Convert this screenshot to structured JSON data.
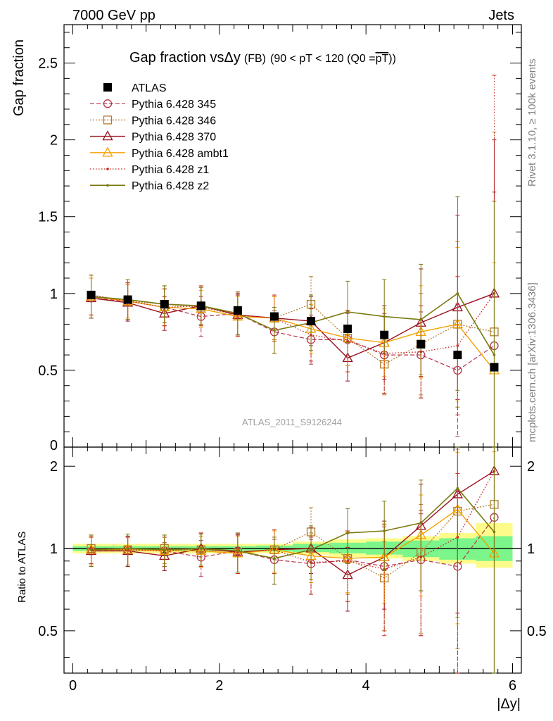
{
  "header": {
    "left": "7000 GeV pp",
    "right": "Jets"
  },
  "title": {
    "main": "Gap fraction vs",
    "delta_y": "Δy",
    "suffix": "(FB)",
    "range": "(90 < pT < 120 (Q0 =",
    "overline_part": "pT",
    "close": "))"
  },
  "side_labels": {
    "rivet": "Rivet 3.1.10, ≥ 100k events",
    "mcplots": "mcplots.cern.ch [arXiv:1306.3436]"
  },
  "watermark": "ATLAS_2011_S9126244",
  "colors": {
    "data": "#000000",
    "p345": "#b5344a",
    "p346": "#b07a2a",
    "p370": "#9a1020",
    "ambt1": "#f5a000",
    "z1": "#c8241b",
    "z2": "#7a7a10",
    "band_inner": "#7cf58a",
    "band_outer": "#fdfb8a"
  },
  "chart_data": [
    {
      "type": "scatter",
      "panel": "main",
      "ylabel": "Gap fraction",
      "xlim": [
        -0.12,
        6.12
      ],
      "ylim": [
        0,
        2.75
      ],
      "yticks": [
        0.5,
        1,
        1.5,
        2,
        2.5
      ],
      "ytick_labels": [
        "0.5",
        "1",
        "1.5",
        "2",
        "2.5"
      ],
      "x": [
        0.25,
        0.75,
        1.25,
        1.75,
        2.25,
        2.75,
        3.25,
        3.75,
        4.25,
        4.75,
        5.25,
        5.75
      ],
      "data": {
        "name": "ATLAS",
        "values": [
          0.99,
          0.96,
          0.93,
          0.92,
          0.89,
          0.85,
          0.82,
          0.77,
          0.73,
          0.67,
          0.6,
          0.52
        ]
      },
      "series": [
        {
          "key": "p345",
          "name": "Pythia 6.428 345",
          "values": [
            0.97,
            0.95,
            0.91,
            0.85,
            0.87,
            0.75,
            0.7,
            0.7,
            0.6,
            0.6,
            0.5,
            0.66
          ],
          "errors": [
            0.13,
            0.12,
            0.12,
            0.13,
            0.14,
            0.14,
            0.16,
            0.17,
            0.25,
            0.28,
            0.43,
            1.0
          ]
        },
        {
          "key": "p346",
          "name": "Pythia 6.428 346",
          "values": [
            0.99,
            0.95,
            0.93,
            0.91,
            0.86,
            0.84,
            0.93,
            0.71,
            0.54,
            0.67,
            0.8,
            0.75
          ],
          "errors": [
            0.13,
            0.12,
            0.12,
            0.13,
            0.14,
            0.14,
            0.18,
            0.18,
            0.2,
            0.33,
            0.54,
            1.3
          ]
        },
        {
          "key": "p370",
          "name": "Pythia 6.428 370",
          "values": [
            0.97,
            0.94,
            0.87,
            0.92,
            0.86,
            0.84,
            0.82,
            0.58,
            0.68,
            0.81,
            0.91,
            1.0
          ],
          "errors": [
            0.13,
            0.12,
            0.11,
            0.12,
            0.13,
            0.14,
            0.16,
            0.15,
            0.24,
            0.35,
            0.6,
            1.0
          ]
        },
        {
          "key": "ambt1",
          "name": "Pythia 6.428 ambt1",
          "values": [
            0.98,
            0.95,
            0.91,
            0.9,
            0.85,
            0.84,
            0.77,
            0.71,
            0.68,
            0.75,
            0.8,
            0.5
          ],
          "errors": [
            0.12,
            0.11,
            0.12,
            0.12,
            0.13,
            0.14,
            0.16,
            0.18,
            0.22,
            0.3,
            0.5,
            0.7
          ]
        },
        {
          "key": "z1",
          "name": "Pythia 6.428 z1",
          "values": [
            0.99,
            0.95,
            0.91,
            0.92,
            0.86,
            0.84,
            0.73,
            0.69,
            0.61,
            0.62,
            0.66,
            1.0
          ],
          "errors": [
            0.13,
            0.12,
            0.12,
            0.13,
            0.14,
            0.15,
            0.17,
            0.2,
            0.26,
            0.3,
            0.45,
            1.42
          ]
        },
        {
          "key": "z2",
          "name": "Pythia 6.428 z2",
          "values": [
            0.98,
            0.96,
            0.93,
            0.92,
            0.87,
            0.76,
            0.81,
            0.88,
            0.85,
            0.83,
            1.0,
            0.6
          ],
          "errors": [
            0.14,
            0.13,
            0.12,
            0.12,
            0.14,
            0.15,
            0.18,
            0.2,
            0.24,
            0.36,
            0.63,
            1.0
          ]
        }
      ]
    },
    {
      "type": "scatter",
      "panel": "ratio",
      "ylabel": "Ratio to ATLAS",
      "xlabel": "|Δy|",
      "xlim": [
        -0.12,
        6.12
      ],
      "ylim": [
        0.35,
        2.35
      ],
      "yscale": "log",
      "xticks": [
        0,
        2,
        4,
        6
      ],
      "xtick_labels": [
        "0",
        "2",
        "4",
        "6"
      ],
      "yticks": [
        0.5,
        1,
        2
      ],
      "ytick_labels": [
        "0.5",
        "1",
        "2"
      ],
      "x": [
        0.25,
        0.75,
        1.25,
        1.75,
        2.25,
        2.75,
        3.25,
        3.75,
        4.25,
        4.75,
        5.25,
        5.75
      ],
      "band_inner": [
        [
          0.98,
          1.02
        ],
        [
          0.98,
          1.02
        ],
        [
          0.98,
          1.02
        ],
        [
          0.98,
          1.02
        ],
        [
          0.98,
          1.02
        ],
        [
          0.975,
          1.025
        ],
        [
          0.97,
          1.04
        ],
        [
          0.96,
          1.05
        ],
        [
          0.95,
          1.06
        ],
        [
          0.93,
          1.07
        ],
        [
          0.91,
          1.09
        ],
        [
          0.9,
          1.11
        ]
      ],
      "band_outer": [
        [
          0.96,
          1.04
        ],
        [
          0.96,
          1.04
        ],
        [
          0.96,
          1.04
        ],
        [
          0.96,
          1.04
        ],
        [
          0.96,
          1.04
        ],
        [
          0.96,
          1.04
        ],
        [
          0.95,
          1.06
        ],
        [
          0.93,
          1.08
        ],
        [
          0.92,
          1.09
        ],
        [
          0.9,
          1.11
        ],
        [
          0.88,
          1.14
        ],
        [
          0.85,
          1.24
        ]
      ],
      "series": [
        {
          "key": "p345",
          "values": [
            0.98,
            0.99,
            0.98,
            0.93,
            0.98,
            0.91,
            0.88,
            0.91,
            0.86,
            0.91,
            0.86,
            1.3
          ],
          "errors": [
            0.12,
            0.12,
            0.12,
            0.14,
            0.16,
            0.17,
            0.2,
            0.23,
            0.36,
            0.43,
            0.75,
            1.6
          ]
        },
        {
          "key": "p346",
          "values": [
            1.0,
            0.99,
            1.0,
            0.99,
            0.97,
            0.99,
            1.15,
            0.92,
            0.78,
            0.97,
            1.37,
            1.45
          ],
          "errors": [
            0.12,
            0.12,
            0.12,
            0.14,
            0.16,
            0.17,
            0.26,
            0.24,
            0.28,
            0.48,
            0.94,
            1.7
          ]
        },
        {
          "key": "p370",
          "values": [
            0.98,
            0.98,
            0.94,
            1.0,
            0.97,
            0.99,
            1.0,
            0.8,
            0.93,
            1.21,
            1.58,
            1.92
          ],
          "errors": [
            0.12,
            0.12,
            0.11,
            0.14,
            0.15,
            0.17,
            0.19,
            0.21,
            0.33,
            0.51,
            1.0,
            1.9
          ]
        },
        {
          "key": "ambt1",
          "values": [
            0.99,
            0.99,
            0.98,
            0.98,
            0.96,
            0.99,
            0.94,
            0.92,
            0.93,
            1.12,
            1.39,
            0.96
          ],
          "errors": [
            0.12,
            0.12,
            0.12,
            0.13,
            0.15,
            0.17,
            0.19,
            0.23,
            0.3,
            0.45,
            0.86,
            1.3
          ]
        },
        {
          "key": "z1",
          "values": [
            1.0,
            0.99,
            0.98,
            1.0,
            0.97,
            0.99,
            0.89,
            0.9,
            0.84,
            0.93,
            1.1,
            1.92
          ],
          "errors": [
            0.12,
            0.12,
            0.12,
            0.14,
            0.16,
            0.18,
            0.21,
            0.26,
            0.36,
            0.45,
            0.78,
            2.7
          ]
        },
        {
          "key": "z2",
          "values": [
            0.99,
            1.0,
            0.99,
            1.0,
            0.98,
            0.92,
            0.99,
            1.14,
            1.16,
            1.24,
            1.66,
            1.15
          ],
          "errors": [
            0.13,
            0.13,
            0.13,
            0.13,
            0.16,
            0.18,
            0.22,
            0.26,
            0.33,
            0.54,
            1.1,
            1.9
          ]
        }
      ]
    }
  ]
}
